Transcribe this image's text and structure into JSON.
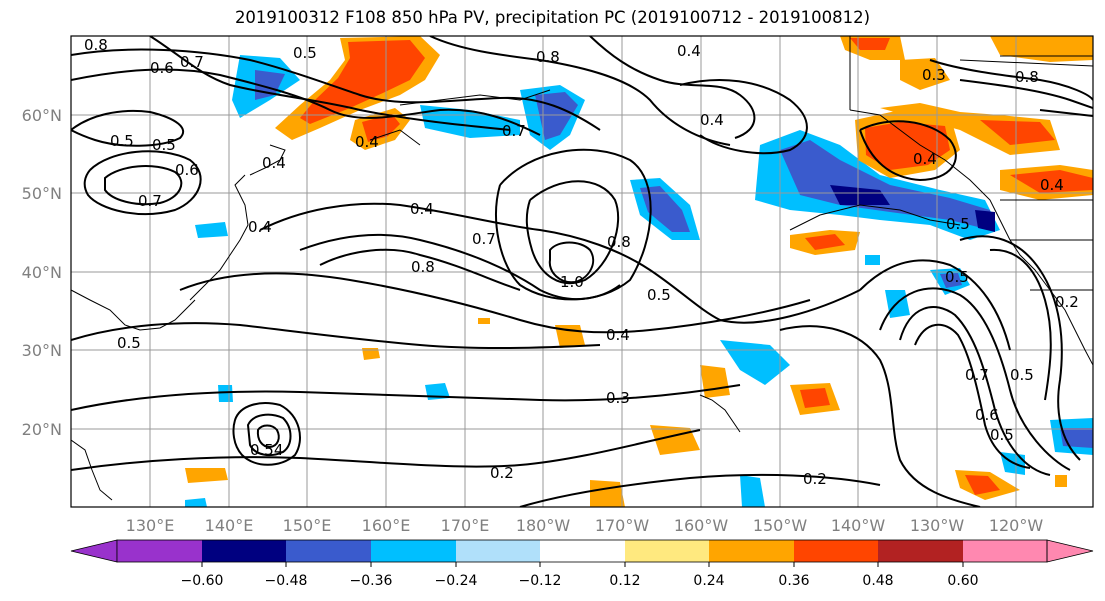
{
  "title": "2019100312 F108 850 hPa PV, precipitation PC (2019100712 - 2019100812)",
  "lon_labels": [
    "130°E",
    "140°E",
    "150°E",
    "160°E",
    "170°E",
    "180°W",
    "170°W",
    "160°W",
    "150°W",
    "140°W",
    "130°W",
    "120°W"
  ],
  "lat_labels": [
    "60°N",
    "50°N",
    "40°N",
    "30°N",
    "20°N"
  ],
  "colorbar": {
    "tick_labels": [
      "−0.60",
      "−0.48",
      "−0.36",
      "−0.24",
      "−0.12",
      "0.12",
      "0.24",
      "0.36",
      "0.48",
      "0.60"
    ],
    "colors": [
      "#9932cc",
      "#000080",
      "#3a5bcd",
      "#00bfff",
      "#b0e0fa",
      "#ffffff",
      "#ffe97f",
      "#ffa500",
      "#ff4500",
      "#b22222",
      "#ff88b0"
    ]
  },
  "contour_labels": [
    {
      "text": "0.8"
    },
    {
      "text": "0.5"
    },
    {
      "text": "0.6"
    },
    {
      "text": "0.7"
    },
    {
      "text": "0.8"
    },
    {
      "text": "0.4"
    },
    {
      "text": "0.5"
    },
    {
      "text": "0.4"
    },
    {
      "text": "0.4"
    },
    {
      "text": "0.7"
    },
    {
      "text": "0.5"
    },
    {
      "text": "0.6"
    },
    {
      "text": "0.7"
    },
    {
      "text": "0.4"
    },
    {
      "text": "0.4"
    },
    {
      "text": "0.4"
    },
    {
      "text": "0.7"
    },
    {
      "text": "0.8"
    },
    {
      "text": "1.0"
    },
    {
      "text": "0.8"
    },
    {
      "text": "0.5"
    },
    {
      "text": "0.4"
    },
    {
      "text": "0.3"
    },
    {
      "text": "0.2"
    },
    {
      "text": "0.2"
    },
    {
      "text": "0.5"
    },
    {
      "text": "0.5"
    },
    {
      "text": "0.54"
    },
    {
      "text": "0.3"
    },
    {
      "text": "0.5"
    },
    {
      "text": "0.5"
    },
    {
      "text": "0.2"
    },
    {
      "text": "0.7"
    },
    {
      "text": "0.6"
    },
    {
      "text": "0.5"
    },
    {
      "text": "0.4"
    },
    {
      "text": "0.8"
    },
    {
      "text": "0.4"
    }
  ]
}
